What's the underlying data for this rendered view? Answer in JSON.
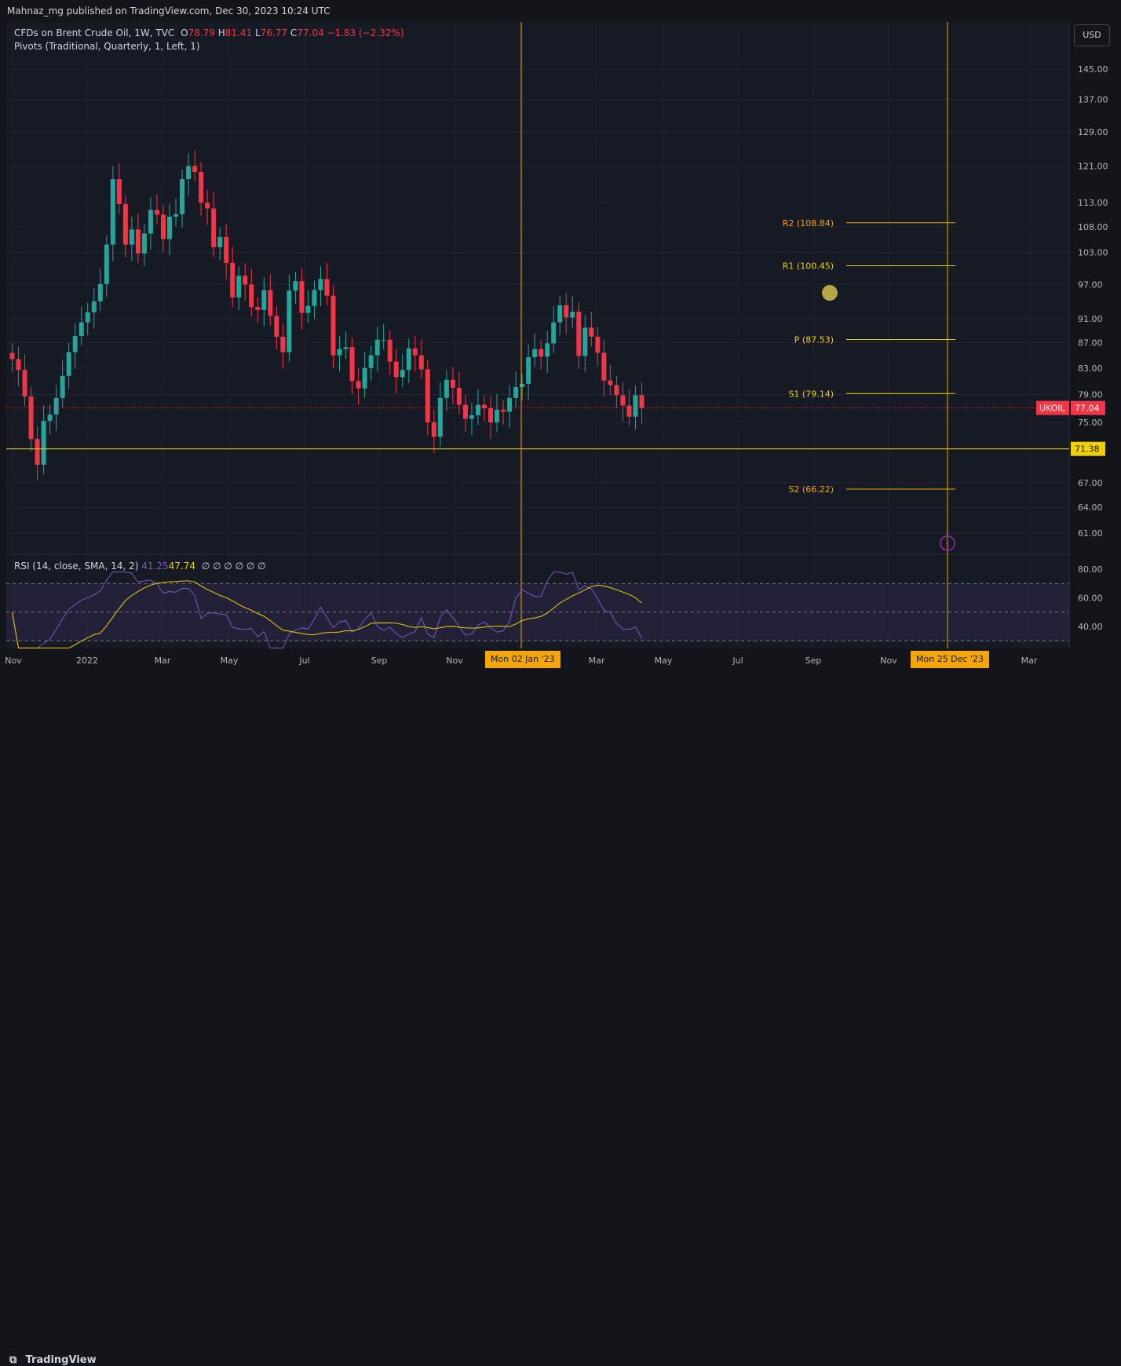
{
  "header": {
    "publisher_text": "Mahnaz_mg published on TradingView.com, Dec 30, 2023 10:24 UTC"
  },
  "legend": {
    "symbol_text": "CFDs on Brent Crude Oil, 1W, TVC",
    "o_label": "O",
    "o_value": "78.79",
    "h_label": "H",
    "h_value": "81.41",
    "l_label": "L",
    "l_value": "76.77",
    "c_label": "C",
    "c_value": "77.04",
    "change": "−1.83 (−2.32%)",
    "pivots_text": "Pivots (Traditional, Quarterly, 1, Left, 1)"
  },
  "rsi_legend": {
    "label": "RSI (14, close, SMA, 14, 2)",
    "rsi_value": "41.25",
    "sma_value": "47.74",
    "extras": "∅ ∅ ∅ ∅ ∅ ∅"
  },
  "currency_button": "USD",
  "footer": {
    "brand": "TradingView"
  },
  "colors": {
    "up": "#26a69a",
    "down": "#f23645",
    "background": "#161a25",
    "pivot_line": "#f0d000",
    "vertical_marker": "#f7a600",
    "rsi_line": "#7e57c2",
    "rsi_sma": "#f0d000"
  },
  "chart_data": [
    {
      "type": "candlestick",
      "title": "CFDs on Brent Crude Oil, 1W, TVC",
      "x_tick_labels": [
        "Nov",
        "2022",
        "Mar",
        "May",
        "Jul",
        "Sep",
        "Nov",
        "Mon 02 Jan '23",
        "Mar",
        "May",
        "Jul",
        "Sep",
        "Nov",
        "Mon 25 Dec '23",
        "Mar"
      ],
      "y_tick_labels": [
        "145.00",
        "137.00",
        "129.00",
        "121.00",
        "113.00",
        "108.00",
        "103.00",
        "97.00",
        "91.00",
        "87.00",
        "83.00",
        "79.00",
        "75.00",
        "71.38",
        "67.00",
        "64.00",
        "61.00"
      ],
      "y_ticks": [
        145,
        137,
        129,
        121,
        113,
        108,
        103,
        97,
        91,
        87,
        83,
        79,
        75,
        67,
        64,
        61
      ],
      "last_price_label": "UKOIL",
      "last_price": "77.04",
      "horizontal_line": {
        "value": 71.38,
        "label": "71.38"
      },
      "pivots": [
        {
          "name": "R2",
          "label": "R2 (108.84)",
          "value": 108.84
        },
        {
          "name": "R1",
          "label": "R1 (100.45)",
          "value": 100.45
        },
        {
          "name": "P",
          "label": "P (87.53)",
          "value": 87.53
        },
        {
          "name": "S1",
          "label": "S1 (79.14)",
          "value": 79.14
        },
        {
          "name": "S2",
          "label": "S2 (66.22)",
          "value": 66.22
        }
      ],
      "vertical_markers": [
        "Mon 02 Jan '23",
        "Mon 25 Dec '23"
      ],
      "closes": [
        84.4,
        82.7,
        78.7,
        72.7,
        69.3,
        75.2,
        76.1,
        78.5,
        81.8,
        85.5,
        88.1,
        90.4,
        92.1,
        94.0,
        97.1,
        104.5,
        118.1,
        112.7,
        104.5,
        107.5,
        102.8,
        106.7,
        111.5,
        110.5,
        105.6,
        110.1,
        110.6,
        118.1,
        121.0,
        119.7,
        113.0,
        111.8,
        104.0,
        106.0,
        101.0,
        94.7,
        98.6,
        97.0,
        93.0,
        92.5,
        96.0,
        91.5,
        88.0,
        85.5,
        95.9,
        97.6,
        92.0,
        93.2,
        96.0,
        98.0,
        95.0,
        85.0,
        86.0,
        86.3,
        81.0,
        79.9,
        83.0,
        85.0,
        87.5,
        87.5,
        84.0,
        81.6,
        82.7,
        86.1,
        85.0,
        82.8,
        75.0,
        73.0,
        78.5,
        81.2,
        80.0,
        77.5,
        75.5,
        76.0,
        77.5,
        77.0,
        75.0,
        76.8,
        76.5,
        78.5,
        80.1,
        80.6,
        84.7,
        86.0,
        84.8,
        86.9,
        90.4,
        93.3,
        91.2,
        92.2,
        84.9,
        89.5,
        88.0,
        85.4,
        81.1,
        80.4,
        78.9,
        77.4,
        75.8,
        78.9,
        77.04
      ],
      "rsi": {
        "label": "RSI (14, close, SMA, 14, 2)",
        "last_value": 41.25,
        "sma_last_value": 47.74,
        "y_ticks": [
          "80.00",
          "60.00",
          "40.00"
        ],
        "band_upper": 70,
        "band_middle": 50,
        "band_lower": 30
      }
    }
  ]
}
